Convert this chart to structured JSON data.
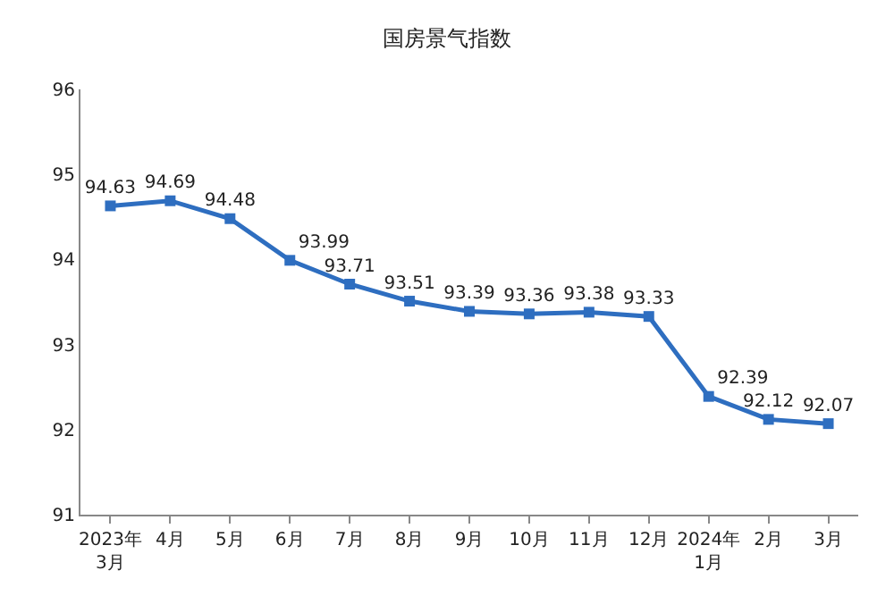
{
  "chart_data": {
    "type": "line",
    "title": "国房景气指数",
    "categories": [
      "2023年\n3月",
      "4月",
      "5月",
      "6月",
      "7月",
      "8月",
      "9月",
      "10月",
      "11月",
      "12月",
      "2024年\n1月",
      "2月",
      "3月"
    ],
    "series": [
      {
        "color": "#2e6ec0",
        "values": [
          94.63,
          94.69,
          94.48,
          93.99,
          93.71,
          93.51,
          93.39,
          93.36,
          93.38,
          93.33,
          92.39,
          92.12,
          92.07
        ]
      }
    ],
    "ylim": [
      91,
      96
    ],
    "yticks": [
      91,
      92,
      93,
      94,
      95,
      96
    ],
    "marker": "square",
    "line_style": "solid",
    "data_labels": true
  }
}
